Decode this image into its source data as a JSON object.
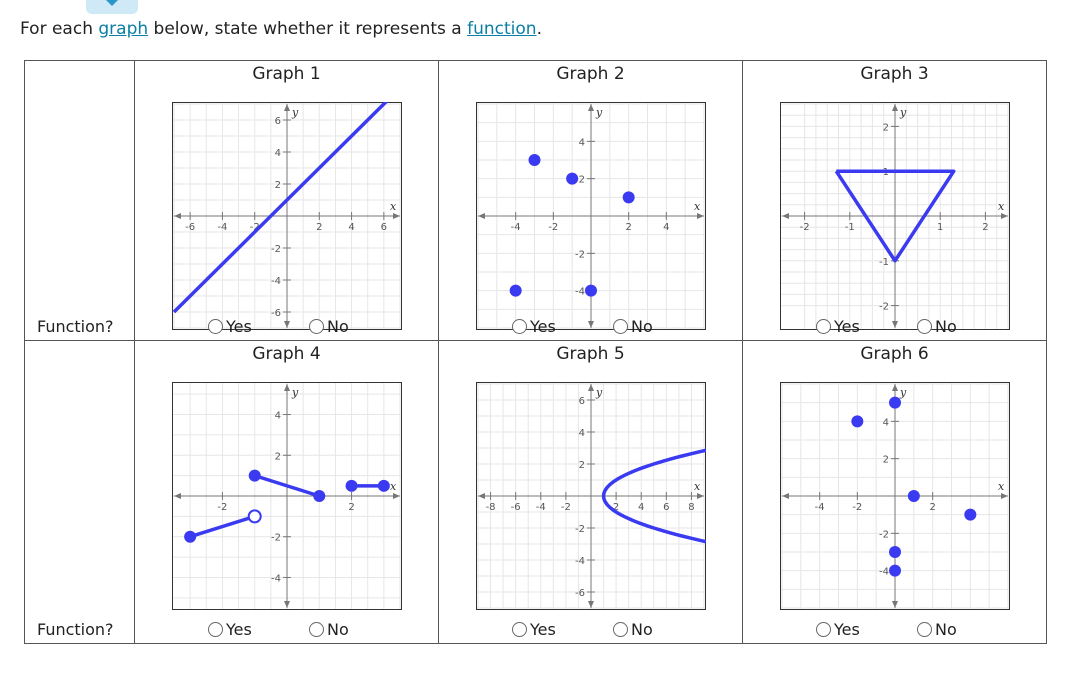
{
  "prompt": {
    "before": "For each ",
    "link1": "graph",
    "middle": " below, state whether it represents a ",
    "link2": "function",
    "after": "."
  },
  "row_label": "Function?",
  "choice_yes": "Yes",
  "choice_no": "No",
  "accent_color": "#3a3af0",
  "graphs": [
    {
      "title": "Graph 1",
      "xlim": [
        -7,
        7
      ],
      "ylim": [
        -7,
        7
      ],
      "xticks": [
        "-6",
        "-4",
        "-2",
        "2",
        "4",
        "6"
      ],
      "yticks": [
        "6",
        "4",
        "2",
        "-2",
        "-4",
        "-6"
      ],
      "chart_data": {
        "type": "line",
        "x": [
          -7,
          7
        ],
        "y": [
          -6,
          8
        ],
        "segments": [
          [
            [
              -7,
              -6
            ],
            [
              7,
              8
            ]
          ]
        ]
      }
    },
    {
      "title": "Graph 2",
      "xlim": [
        -6,
        6
      ],
      "ylim": [
        -6,
        6
      ],
      "xticks": [
        "-4",
        "-2",
        "2",
        "4"
      ],
      "yticks": [
        "4",
        "2",
        "-2",
        "-4"
      ],
      "chart_data": {
        "type": "scatter",
        "points": [
          [
            -3,
            3
          ],
          [
            -1,
            2
          ],
          [
            2,
            1
          ],
          [
            -4,
            -4
          ],
          [
            0,
            -4
          ]
        ]
      }
    },
    {
      "title": "Graph 3",
      "xlim": [
        -2.5,
        2.5
      ],
      "ylim": [
        -2.5,
        2.5
      ],
      "xticks": [
        "-2",
        "-1",
        "1",
        "2"
      ],
      "yticks": [
        "2",
        "1",
        "-1",
        "-2"
      ],
      "chart_data": {
        "type": "line",
        "segments": [
          [
            [
              -1.3,
              1
            ],
            [
              1.3,
              1
            ],
            [
              0,
              -1
            ],
            [
              -1.3,
              1
            ]
          ]
        ]
      }
    },
    {
      "title": "Graph 4",
      "xlim": [
        -3.5,
        3.5
      ],
      "ylim": [
        -5.5,
        5.5
      ],
      "xticks": [
        "-2",
        "2"
      ],
      "yticks": [
        "4",
        "2",
        "-2",
        "-4"
      ],
      "chart_data": {
        "type": "line",
        "segments": [
          [
            [
              -3,
              -2
            ],
            [
              -1,
              -1
            ]
          ],
          [
            [
              -1,
              1
            ],
            [
              1,
              0
            ]
          ],
          [
            [
              2,
              0.5
            ],
            [
              3,
              0.5
            ]
          ]
        ],
        "closed_points": [
          [
            -3,
            -2
          ],
          [
            -1,
            1
          ],
          [
            1,
            0
          ],
          [
            2,
            0.5
          ],
          [
            3,
            0.5
          ]
        ],
        "open_points": [
          [
            -1,
            -1
          ]
        ]
      }
    },
    {
      "title": "Graph 5",
      "xlim": [
        -9,
        9
      ],
      "ylim": [
        -7,
        7
      ],
      "xticks": [
        "-8",
        "-6",
        "-4",
        "-2",
        "2",
        "4",
        "6",
        "8"
      ],
      "yticks": [
        "6",
        "4",
        "2",
        "-2",
        "-4",
        "-6"
      ],
      "chart_data": {
        "type": "line",
        "equation": "x = 1 + y^2",
        "x_vertex": 1,
        "y_range": [
          -3,
          3
        ]
      }
    },
    {
      "title": "Graph 6",
      "xlim": [
        -6,
        6
      ],
      "ylim": [
        -6,
        6
      ],
      "xticks": [
        "-4",
        "-2",
        "2"
      ],
      "yticks": [
        "4",
        "2",
        "-2",
        "-4"
      ],
      "chart_data": {
        "type": "scatter",
        "points": [
          [
            0,
            5
          ],
          [
            -2,
            4
          ],
          [
            1,
            0
          ],
          [
            4,
            -1
          ],
          [
            0,
            -3
          ],
          [
            0,
            -4
          ]
        ]
      }
    }
  ]
}
